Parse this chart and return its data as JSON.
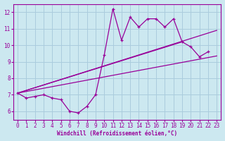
{
  "title": "",
  "xlabel": "Windchill (Refroidissement éolien,°C)",
  "ylabel": "",
  "background_color": "#cce8f0",
  "grid_color": "#aaccdd",
  "line_color": "#990099",
  "xlim": [
    -0.5,
    23.5
  ],
  "ylim": [
    5.5,
    12.5
  ],
  "xticks": [
    0,
    1,
    2,
    3,
    4,
    5,
    6,
    7,
    8,
    9,
    10,
    11,
    12,
    13,
    14,
    15,
    16,
    17,
    18,
    19,
    20,
    21,
    22,
    23
  ],
  "yticks": [
    6,
    7,
    8,
    9,
    10,
    11,
    12
  ],
  "line1_x": [
    0,
    1,
    2,
    3,
    4,
    5,
    6,
    7,
    8,
    9,
    10,
    11,
    12,
    13,
    14,
    15,
    16,
    17,
    18,
    19,
    20,
    21,
    22
  ],
  "line1_y": [
    7.1,
    6.8,
    6.9,
    7.0,
    6.8,
    6.7,
    6.0,
    5.9,
    6.3,
    7.0,
    9.4,
    12.2,
    10.3,
    11.7,
    11.1,
    11.6,
    11.6,
    11.1,
    11.6,
    10.2,
    9.9,
    9.3,
    9.6
  ],
  "line2_x": [
    0,
    23
  ],
  "line2_y": [
    7.1,
    9.35
  ],
  "line3_x": [
    0,
    23
  ],
  "line3_y": [
    7.1,
    10.9
  ],
  "line4_x": [
    0,
    19
  ],
  "line4_y": [
    7.1,
    10.2
  ]
}
